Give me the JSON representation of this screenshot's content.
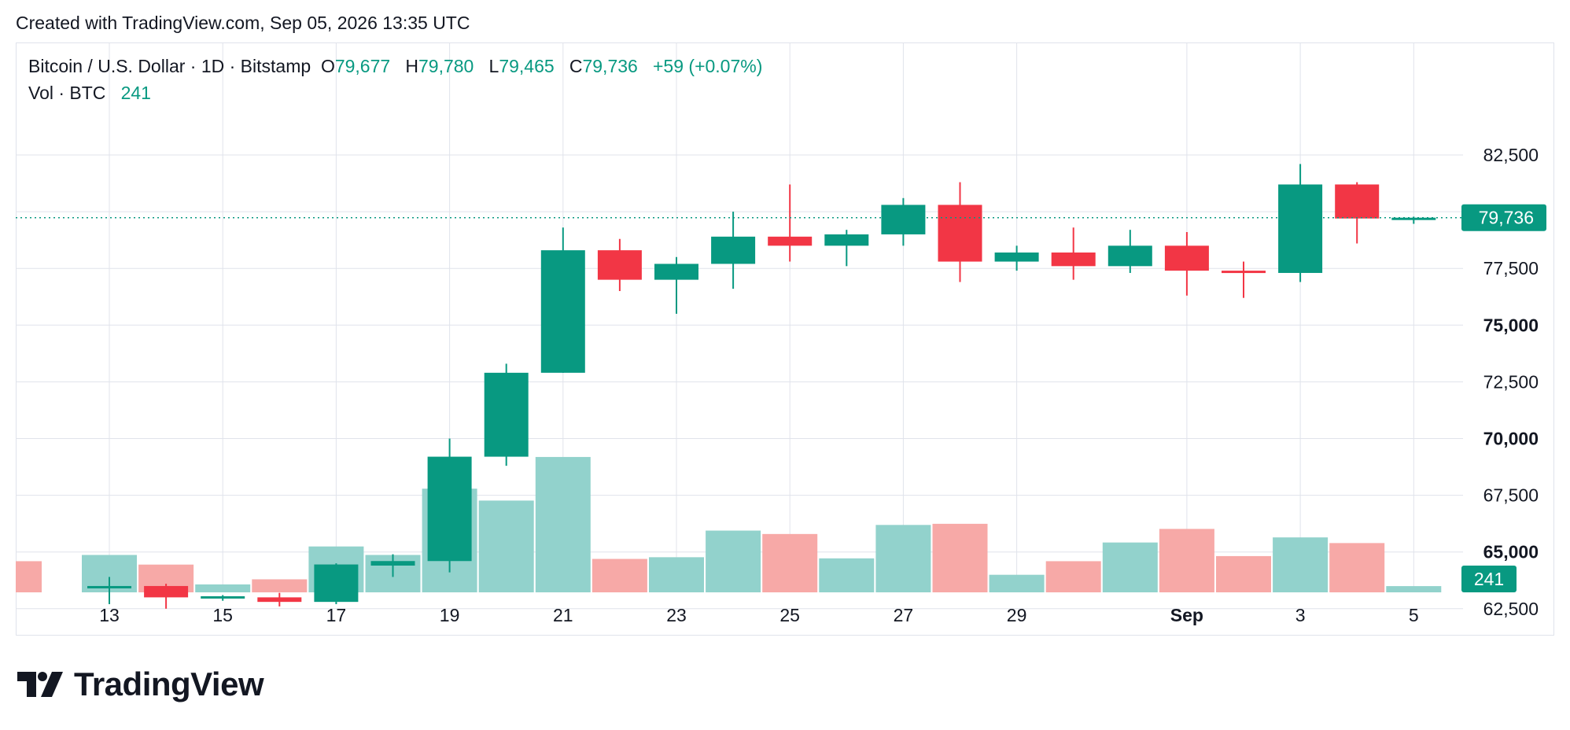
{
  "header": {
    "created_text": "Created with TradingView.com, Sep 05, 2026 13:35 UTC"
  },
  "legend": {
    "symbol": "Bitcoin / U.S. Dollar · 1D · Bitstamp",
    "o_label": "O",
    "o_value": "79,677",
    "h_label": "H",
    "h_value": "79,780",
    "l_label": "L",
    "l_value": "79,465",
    "c_label": "C",
    "c_value": "79,736",
    "change": "+59 (+0.07%)"
  },
  "volume_legend": {
    "label": "Vol · BTC",
    "value": "241"
  },
  "footer": {
    "brand": "TradingView"
  },
  "colors": {
    "up": "#089981",
    "down": "#f23645",
    "vol_up": "#92d2cc",
    "vol_down": "#f7a9a7",
    "grid": "#e0e3eb"
  },
  "chart_data": {
    "type": "candlestick",
    "price_axis": {
      "ticks": [
        62500,
        65000,
        67500,
        70000,
        72500,
        75000,
        77500,
        82500
      ],
      "tick_labels": [
        "62,500",
        "65,000",
        "67,500",
        "70,000",
        "72,500",
        "75,000",
        "77,500",
        "82,500"
      ],
      "bold_ticks": [
        65000,
        70000,
        75000
      ],
      "range": [
        60400,
        84500
      ]
    },
    "last_price_label": "79,736",
    "last_volume_label": "241",
    "x_axis": {
      "ticks": [
        {
          "date": "Aug 13",
          "label": "13"
        },
        {
          "date": "Aug 15",
          "label": "15"
        },
        {
          "date": "Aug 17",
          "label": "17"
        },
        {
          "date": "Aug 19",
          "label": "19"
        },
        {
          "date": "Aug 21",
          "label": "21"
        },
        {
          "date": "Aug 23",
          "label": "23"
        },
        {
          "date": "Aug 25",
          "label": "25"
        },
        {
          "date": "Aug 27",
          "label": "27"
        },
        {
          "date": "Aug 29",
          "label": "29"
        },
        {
          "date": "Sep 1",
          "label": "Sep"
        },
        {
          "date": "Sep 3",
          "label": "3"
        },
        {
          "date": "Sep 5",
          "label": "5"
        }
      ]
    },
    "candles": [
      {
        "date": "Aug 13",
        "open": 63400,
        "high": 63900,
        "low": 62700,
        "close": 63500
      },
      {
        "date": "Aug 14",
        "open": 63500,
        "high": 63600,
        "low": 62500,
        "close": 63000
      },
      {
        "date": "Aug 15",
        "open": 63000,
        "high": 63100,
        "low": 62850,
        "close": 63050
      },
      {
        "date": "Aug 16",
        "open": 63000,
        "high": 63200,
        "low": 62600,
        "close": 62800
      },
      {
        "date": "Aug 17",
        "open": 62800,
        "high": 64500,
        "low": 62700,
        "close": 64450
      },
      {
        "date": "Aug 18",
        "open": 64400,
        "high": 64900,
        "low": 63900,
        "close": 64600
      },
      {
        "date": "Aug 19",
        "open": 64600,
        "high": 70000,
        "low": 64100,
        "close": 69200
      },
      {
        "date": "Aug 20",
        "open": 69200,
        "high": 73300,
        "low": 68800,
        "close": 72900
      },
      {
        "date": "Aug 21",
        "open": 72900,
        "high": 79300,
        "low": 72900,
        "close": 78300
      },
      {
        "date": "Aug 22",
        "open": 78300,
        "high": 78800,
        "low": 76500,
        "close": 77000
      },
      {
        "date": "Aug 23",
        "open": 77000,
        "high": 78000,
        "low": 75500,
        "close": 77700
      },
      {
        "date": "Aug 24",
        "open": 77700,
        "high": 80000,
        "low": 76600,
        "close": 78900
      },
      {
        "date": "Aug 25",
        "open": 78900,
        "high": 81200,
        "low": 77800,
        "close": 78500
      },
      {
        "date": "Aug 26",
        "open": 78500,
        "high": 79200,
        "low": 77600,
        "close": 79000
      },
      {
        "date": "Aug 27",
        "open": 79000,
        "high": 80600,
        "low": 78500,
        "close": 80300
      },
      {
        "date": "Aug 28",
        "open": 80300,
        "high": 81300,
        "low": 76900,
        "close": 77800
      },
      {
        "date": "Aug 29",
        "open": 77800,
        "high": 78500,
        "low": 77400,
        "close": 78200
      },
      {
        "date": "Aug 30",
        "open": 78200,
        "high": 79300,
        "low": 77000,
        "close": 77600
      },
      {
        "date": "Aug 31",
        "open": 77600,
        "high": 79200,
        "low": 77300,
        "close": 78500
      },
      {
        "date": "Sep 1",
        "open": 78500,
        "high": 79100,
        "low": 76300,
        "close": 77400
      },
      {
        "date": "Sep 2",
        "open": 77400,
        "high": 77800,
        "low": 76200,
        "close": 77300
      },
      {
        "date": "Sep 3",
        "open": 77300,
        "high": 82100,
        "low": 76900,
        "close": 81200
      },
      {
        "date": "Sep 4",
        "open": 81200,
        "high": 81300,
        "low": 78600,
        "close": 79700
      },
      {
        "date": "Sep 5",
        "open": 79677,
        "high": 79780,
        "low": 79465,
        "close": 79736
      }
    ],
    "volume_bars": [
      {
        "date": "Aug 12",
        "direction": "down",
        "volume": 0.55
      },
      {
        "date": "Aug 13",
        "direction": "up",
        "volume": 0.66
      },
      {
        "date": "Aug 14",
        "direction": "down",
        "volume": 0.49
      },
      {
        "date": "Aug 15",
        "direction": "up",
        "volume": 0.14
      },
      {
        "date": "Aug 16",
        "direction": "down",
        "volume": 0.23
      },
      {
        "date": "Aug 17",
        "direction": "up",
        "volume": 0.81
      },
      {
        "date": "Aug 18",
        "direction": "up",
        "volume": 0.66
      },
      {
        "date": "Aug 19",
        "direction": "up",
        "volume": 1.83
      },
      {
        "date": "Aug 20",
        "direction": "up",
        "volume": 1.62
      },
      {
        "date": "Aug 21",
        "direction": "up",
        "volume": 2.39
      },
      {
        "date": "Aug 22",
        "direction": "down",
        "volume": 0.59
      },
      {
        "date": "Aug 23",
        "direction": "up",
        "volume": 0.62
      },
      {
        "date": "Aug 24",
        "direction": "up",
        "volume": 1.09
      },
      {
        "date": "Aug 25",
        "direction": "down",
        "volume": 1.03
      },
      {
        "date": "Aug 26",
        "direction": "up",
        "volume": 0.6
      },
      {
        "date": "Aug 27",
        "direction": "up",
        "volume": 1.19
      },
      {
        "date": "Aug 28",
        "direction": "down",
        "volume": 1.21
      },
      {
        "date": "Aug 29",
        "direction": "up",
        "volume": 0.31
      },
      {
        "date": "Aug 30",
        "direction": "down",
        "volume": 0.55
      },
      {
        "date": "Aug 31",
        "direction": "up",
        "volume": 0.88
      },
      {
        "date": "Sep 1",
        "direction": "down",
        "volume": 1.12
      },
      {
        "date": "Sep 2",
        "direction": "down",
        "volume": 0.64
      },
      {
        "date": "Sep 3",
        "direction": "up",
        "volume": 0.97
      },
      {
        "date": "Sep 4",
        "direction": "down",
        "volume": 0.87
      },
      {
        "date": "Sep 5",
        "direction": "up",
        "volume": 0.11
      }
    ]
  }
}
